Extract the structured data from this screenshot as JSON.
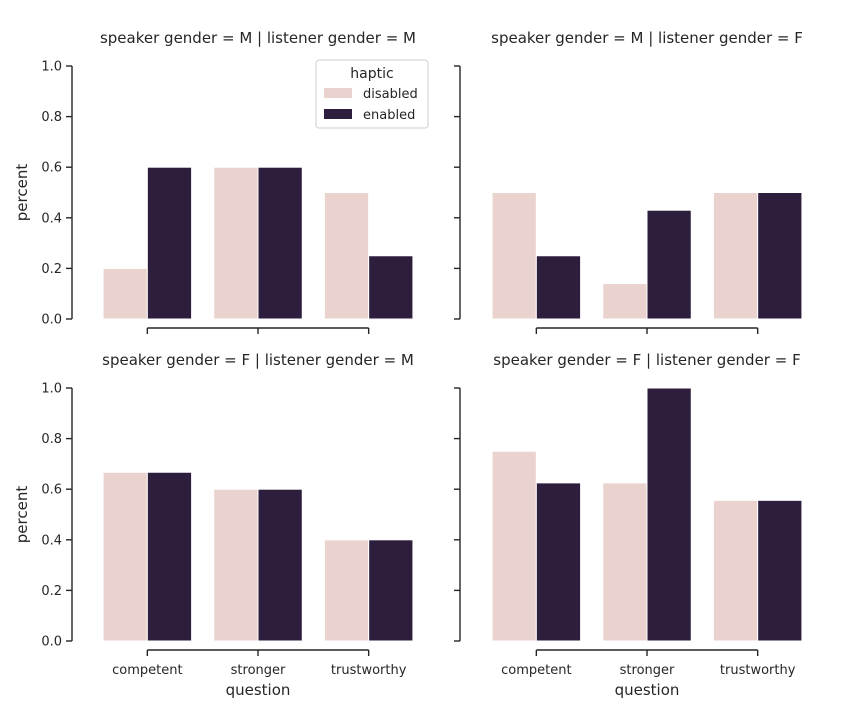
{
  "chart_data": [
    {
      "type": "bar",
      "title": "speaker gender = M | listener gender = M",
      "categories": [
        "competent",
        "stronger",
        "trustworthy"
      ],
      "series": [
        {
          "name": "disabled",
          "values": [
            0.2,
            0.6,
            0.5
          ]
        },
        {
          "name": "enabled",
          "values": [
            0.6,
            0.6,
            0.25
          ]
        }
      ],
      "ylabel": "percent",
      "xlabel": "",
      "ylim": [
        0,
        1
      ],
      "yticks": [
        "0.0",
        "0.2",
        "0.4",
        "0.6",
        "0.8",
        "1.0"
      ],
      "show_xtick_labels": false,
      "show_ytick_labels": true,
      "legend": {
        "title": "haptic",
        "position": "top-right"
      }
    },
    {
      "type": "bar",
      "title": "speaker gender = M | listener gender = F",
      "categories": [
        "competent",
        "stronger",
        "trustworthy"
      ],
      "series": [
        {
          "name": "disabled",
          "values": [
            0.5,
            0.14,
            0.5
          ]
        },
        {
          "name": "enabled",
          "values": [
            0.25,
            0.43,
            0.5
          ]
        }
      ],
      "ylabel": "",
      "xlabel": "",
      "ylim": [
        0,
        1
      ],
      "yticks": [
        "0.0",
        "0.2",
        "0.4",
        "0.6",
        "0.8",
        "1.0"
      ],
      "show_xtick_labels": false,
      "show_ytick_labels": false
    },
    {
      "type": "bar",
      "title": "speaker gender = F | listener gender = M",
      "categories": [
        "competent",
        "stronger",
        "trustworthy"
      ],
      "series": [
        {
          "name": "disabled",
          "values": [
            0.667,
            0.6,
            0.4
          ]
        },
        {
          "name": "enabled",
          "values": [
            0.667,
            0.6,
            0.4
          ]
        }
      ],
      "ylabel": "percent",
      "xlabel": "question",
      "ylim": [
        0,
        1
      ],
      "yticks": [
        "0.0",
        "0.2",
        "0.4",
        "0.6",
        "0.8",
        "1.0"
      ],
      "show_xtick_labels": true,
      "show_ytick_labels": true
    },
    {
      "type": "bar",
      "title": "speaker gender = F | listener gender = F",
      "categories": [
        "competent",
        "stronger",
        "trustworthy"
      ],
      "series": [
        {
          "name": "disabled",
          "values": [
            0.75,
            0.625,
            0.556
          ]
        },
        {
          "name": "enabled",
          "values": [
            0.625,
            1.0,
            0.556
          ]
        }
      ],
      "ylabel": "",
      "xlabel": "question",
      "ylim": [
        0,
        1
      ],
      "yticks": [
        "0.0",
        "0.2",
        "0.4",
        "0.6",
        "0.8",
        "1.0"
      ],
      "show_xtick_labels": true,
      "show_ytick_labels": false
    }
  ],
  "colors": {
    "disabled": "#ead3cf",
    "enabled": "#2d1e3e",
    "axis": "#262626",
    "legend_border": "#cccccc"
  }
}
